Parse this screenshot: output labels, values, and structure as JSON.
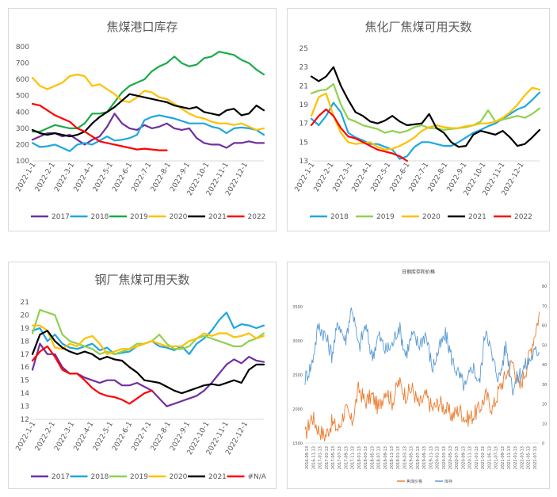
{
  "chart_data": [
    {
      "type": "line",
      "title": "焦煤港口库存",
      "ylim": [
        100,
        800
      ],
      "yticks": [
        100,
        200,
        300,
        400,
        500,
        600,
        700,
        800
      ],
      "xlabels": [
        "2022-1-1",
        "2022-2-1",
        "2022-3-1",
        "2022-4-1",
        "2022-5-1",
        "2022-6-1",
        "2022-7-1",
        "2022-8-1",
        "2022-9-1",
        "2022-10-1",
        "2022-11-1",
        "2022-12-1"
      ],
      "legend_position": "bottom",
      "grid": false,
      "series": [
        {
          "name": "2017",
          "color": "#7030a0",
          "values": [
            230,
            250,
            270,
            270,
            250,
            260,
            230,
            200,
            230,
            250,
            310,
            390,
            330,
            300,
            290,
            320,
            300,
            310,
            330,
            300,
            290,
            300,
            240,
            210,
            200,
            200,
            180,
            210,
            210,
            220,
            210,
            210
          ]
        },
        {
          "name": "2018",
          "color": "#1ea7e1",
          "values": [
            210,
            185,
            190,
            200,
            180,
            160,
            200,
            210,
            200,
            225,
            250,
            225,
            230,
            240,
            260,
            350,
            370,
            380,
            370,
            360,
            345,
            330,
            330,
            330,
            310,
            300,
            270,
            300,
            305,
            300,
            290,
            260
          ]
        },
        {
          "name": "2019",
          "color": "#1aab48",
          "values": [
            280,
            280,
            300,
            320,
            310,
            300,
            300,
            330,
            390,
            390,
            400,
            460,
            520,
            560,
            580,
            600,
            650,
            680,
            700,
            740,
            700,
            680,
            690,
            730,
            740,
            770,
            760,
            750,
            720,
            700,
            660,
            630
          ]
        },
        {
          "name": "2020",
          "color": "#ffc000",
          "values": [
            610,
            560,
            540,
            560,
            580,
            620,
            630,
            620,
            560,
            570,
            540,
            510,
            470,
            460,
            490,
            530,
            520,
            490,
            480,
            450,
            420,
            390,
            370,
            360,
            340,
            330,
            330,
            320,
            330,
            310,
            290,
            300
          ]
        },
        {
          "name": "2021",
          "color": "#000000",
          "values": [
            290,
            270,
            260,
            270,
            260,
            250,
            260,
            280,
            330,
            370,
            400,
            430,
            470,
            510,
            500,
            490,
            480,
            470,
            460,
            440,
            430,
            420,
            430,
            400,
            390,
            380,
            410,
            420,
            380,
            390,
            440,
            410
          ]
        },
        {
          "name": "2022",
          "color": "#ff0000",
          "values": [
            450,
            440,
            410,
            380,
            360,
            340,
            300,
            280,
            250,
            220,
            210,
            200,
            190,
            180,
            170,
            175,
            170,
            165,
            165
          ]
        }
      ]
    },
    {
      "type": "line",
      "title": "焦化厂焦煤可用天数",
      "ylim": [
        13,
        25
      ],
      "yticks": [
        13,
        15,
        17,
        19,
        21,
        23,
        25
      ],
      "xlabels": [
        "2022-1-1",
        "2022-2-1",
        "2022-3-1",
        "2022-4-1",
        "2022-5-1",
        "2022-6-1",
        "2022-7-1",
        "2022-8-1",
        "2022-9-1",
        "2022-10-1",
        "2022-11-1",
        "2022-12-1"
      ],
      "legend_position": "bottom",
      "grid": false,
      "series": [
        {
          "name": "2018",
          "color": "#1ea7e1",
          "values": [
            17.5,
            16.8,
            17.8,
            19.2,
            18.2,
            16.0,
            15.5,
            15.2,
            14.8,
            14.8,
            14.5,
            14.2,
            13.2,
            13.5,
            14.5,
            15.0,
            15.0,
            14.8,
            14.6,
            14.6,
            15.0,
            15.5,
            16.0,
            16.3,
            16.7,
            17.0,
            17.5,
            18.0,
            18.5,
            18.8,
            19.5,
            20.3
          ]
        },
        {
          "name": "2019",
          "color": "#8fd14f",
          "values": [
            20.2,
            20.5,
            20.6,
            21.2,
            19.0,
            17.5,
            17.2,
            16.8,
            16.6,
            16.4,
            16.0,
            16.2,
            16.0,
            16.2,
            16.6,
            16.8,
            16.5,
            16.5,
            16.3,
            16.4,
            16.5,
            16.6,
            16.8,
            17.2,
            18.4,
            17.2,
            17.4,
            17.6,
            17.8,
            17.6,
            18.0,
            18.6
          ]
        },
        {
          "name": "2020",
          "color": "#ffc000",
          "values": [
            17.8,
            19.8,
            20.2,
            17.8,
            16.0,
            15.0,
            14.8,
            14.9,
            15.0,
            14.5,
            14.2,
            14.3,
            14.6,
            15.0,
            15.5,
            16.2,
            16.6,
            16.8,
            16.6,
            16.5,
            16.5,
            16.7,
            16.8,
            17.0,
            17.0,
            17.2,
            17.6,
            18.2,
            19.0,
            20.0,
            20.8,
            20.6
          ]
        },
        {
          "name": "2021",
          "color": "#000000",
          "values": [
            22.0,
            21.5,
            22.0,
            23.0,
            21.0,
            19.5,
            18.2,
            17.8,
            17.2,
            17.0,
            17.3,
            17.8,
            17.2,
            16.8,
            16.9,
            17.0,
            18.0,
            16.5,
            16.0,
            15.0,
            14.5,
            14.6,
            15.8,
            16.2,
            16.0,
            15.8,
            16.2,
            15.5,
            14.6,
            14.8,
            15.5,
            16.3
          ]
        },
        {
          "name": "2022",
          "color": "#ff0000",
          "values": [
            16.8,
            17.8,
            18.5,
            17.8,
            16.5,
            15.6,
            15.4,
            15.0,
            14.6,
            14.2,
            14.0,
            13.8,
            13.5,
            13.0
          ]
        }
      ]
    },
    {
      "type": "line",
      "title": "钢厂焦煤可用天数",
      "ylim": [
        12,
        21
      ],
      "yticks": [
        12,
        13,
        14,
        15,
        16,
        17,
        18,
        19,
        20,
        21
      ],
      "xlabels": [
        "2022-1-1",
        "2022-2-1",
        "2022-3-1",
        "2022-4-1",
        "2022-5-1",
        "2022-6-1",
        "2022-7-1",
        "2022-8-1",
        "2022-9-1",
        "2022-10-1",
        "2022-11-1",
        "2022-12-1"
      ],
      "legend_position": "bottom",
      "grid": false,
      "series": [
        {
          "name": "2017",
          "color": "#7030a0",
          "values": [
            15.8,
            17.8,
            17.0,
            17.0,
            16.0,
            15.5,
            15.5,
            15.2,
            15.0,
            14.8,
            15.0,
            15.0,
            14.6,
            14.6,
            14.8,
            14.5,
            14.2,
            13.6,
            13.0,
            13.2,
            13.4,
            13.6,
            13.8,
            14.2,
            14.8,
            15.5,
            16.2,
            16.6,
            16.3,
            16.8,
            16.5,
            16.4
          ]
        },
        {
          "name": "2018",
          "color": "#1ea7e1",
          "values": [
            18.8,
            19.0,
            18.0,
            18.5,
            17.8,
            17.5,
            17.4,
            17.6,
            17.8,
            17.3,
            17.5,
            17.0,
            17.1,
            17.2,
            17.6,
            17.8,
            18.0,
            17.6,
            17.5,
            17.3,
            17.6,
            17.0,
            17.8,
            18.2,
            18.8,
            19.6,
            20.2,
            19.0,
            19.3,
            19.2,
            19.0,
            19.2
          ]
        },
        {
          "name": "2019",
          "color": "#8fd14f",
          "values": [
            18.6,
            20.4,
            20.2,
            20.0,
            18.5,
            18.0,
            17.8,
            17.6,
            17.4,
            17.0,
            17.2,
            17.0,
            17.2,
            17.4,
            17.8,
            17.8,
            18.0,
            18.5,
            17.8,
            17.4,
            17.4,
            17.6,
            18.2,
            18.4,
            18.2,
            18.0,
            17.8,
            17.6,
            17.6,
            18.0,
            18.2,
            18.6
          ]
        },
        {
          "name": "2020",
          "color": "#ffc000",
          "values": [
            19.2,
            19.2,
            18.8,
            17.5,
            17.4,
            17.8,
            17.6,
            18.2,
            18.4,
            17.8,
            17.0,
            17.2,
            17.4,
            17.4,
            17.6,
            17.8,
            18.0,
            17.8,
            17.6,
            17.6,
            17.6,
            18.0,
            18.2,
            18.6,
            18.4,
            18.6,
            18.6,
            18.3,
            18.4,
            18.6,
            18.2,
            18.4
          ]
        },
        {
          "name": "2021",
          "color": "#000000",
          "values": [
            17.0,
            18.5,
            18.8,
            18.0,
            17.5,
            17.2,
            17.0,
            17.2,
            17.0,
            16.6,
            16.8,
            16.6,
            16.5,
            16.0,
            15.6,
            15.0,
            14.9,
            14.8,
            14.5,
            14.2,
            14.0,
            14.2,
            14.4,
            14.6,
            14.7,
            14.6,
            14.8,
            15.0,
            14.8,
            15.8,
            16.2,
            16.2
          ]
        },
        {
          "name": "#N/A",
          "color": "#ff0000",
          "values": [
            16.5,
            17.2,
            17.6,
            16.8,
            15.8,
            15.5,
            15.5,
            15.0,
            14.4,
            14.0,
            13.8,
            13.7,
            13.5,
            13.2,
            13.6,
            14.0,
            14.2
          ]
        }
      ]
    },
    {
      "type": "line",
      "title": "日钢库存和价格",
      "ylim_left": [
        1500,
        3800
      ],
      "yticks_left": [
        1500,
        2000,
        2500,
        3000,
        3500
      ],
      "ylim_right": [
        0,
        80
      ],
      "yticks_right": [
        0,
        10,
        20,
        30,
        40,
        50,
        60,
        70,
        80
      ],
      "xlabels": [
        "2016-09-13",
        "2016-11-13",
        "2017-01-13",
        "2017-03-13",
        "2017-05-13",
        "2017-07-13",
        "2017-09-13",
        "2017-11-13",
        "2018-01-13",
        "2018-03-13",
        "2018-05-13",
        "2018-07-13",
        "2018-09-13",
        "2018-11-13",
        "2019-01-13",
        "2019-03-13",
        "2019-05-13",
        "2019-07-13",
        "2019-09-13",
        "2019-11-13",
        "2020-01-13",
        "2020-03-13",
        "2020-05-13",
        "2020-07-13",
        "2020-09-13",
        "2020-11-13",
        "2021-01-13",
        "2021-03-13",
        "2021-05-13",
        "2021-07-13",
        "2021-09-13",
        "2021-11-13",
        "2022-01-13",
        "2022-03-13",
        "2022-05-13",
        "2022-07-13"
      ],
      "legend_position": "bottom",
      "grid": false,
      "series": [
        {
          "name": "焦煤价格",
          "color": "#ed7d31",
          "axis": "left",
          "values": [
            1600,
            1900,
            1700,
            1600,
            1800,
            1700,
            2000,
            1800,
            2300,
            2100,
            2200,
            2000,
            2300,
            2100,
            2400,
            2200,
            2300,
            2050,
            2200,
            2000,
            2100,
            2000,
            1900,
            2000,
            1850,
            1900,
            2000,
            2200,
            2000,
            2300,
            2500,
            2700,
            2300,
            2600,
            3000,
            3400
          ]
        },
        {
          "name": "库存",
          "color": "#5b9bd5",
          "axis": "right",
          "values": [
            33,
            40,
            60,
            55,
            45,
            62,
            52,
            70,
            48,
            60,
            44,
            55,
            47,
            50,
            60,
            45,
            55,
            50,
            56,
            38,
            48,
            55,
            42,
            34,
            28,
            40,
            30,
            60,
            42,
            33,
            50,
            28,
            35,
            40,
            45,
            48
          ]
        }
      ]
    }
  ]
}
